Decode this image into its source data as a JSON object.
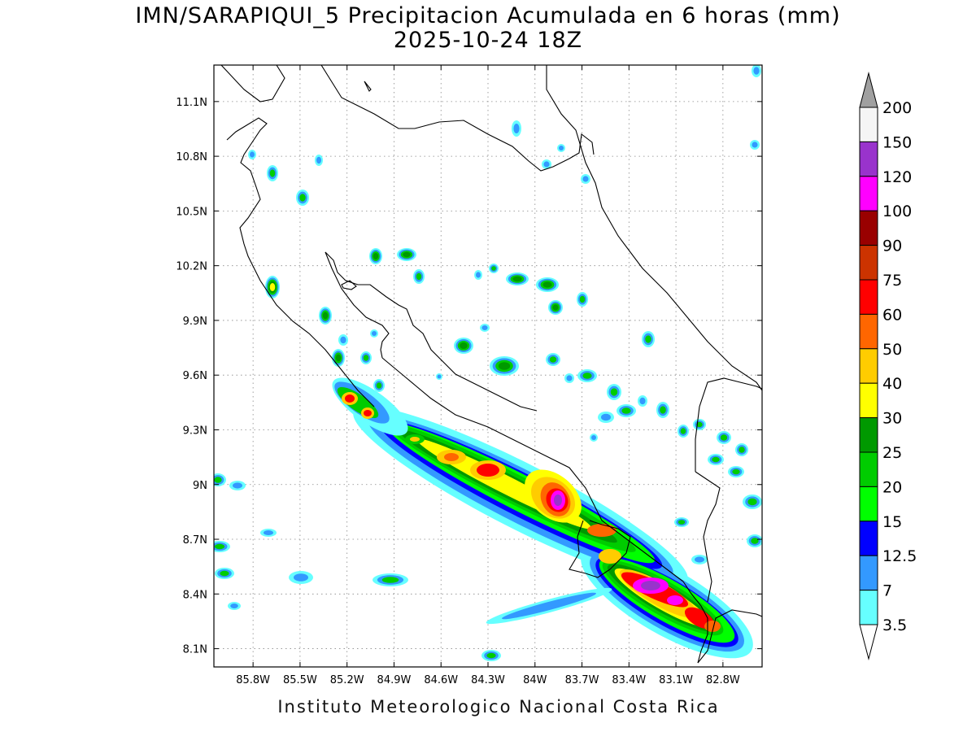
{
  "title": {
    "line1": "IMN/SARAPIQUI_5 Precipitacion Acumulada en 6 horas (mm)",
    "line2": "2025-10-24 18Z"
  },
  "footer": "Instituto Meteorologico Nacional Costa Rica",
  "map": {
    "lon_range": [
      -86.05,
      -82.55
    ],
    "lat_range": [
      8.0,
      11.3
    ],
    "lat_ticks": [
      {
        "value": 11.1,
        "label": "11.1N"
      },
      {
        "value": 10.8,
        "label": "10.8N"
      },
      {
        "value": 10.5,
        "label": "10.5N"
      },
      {
        "value": 10.2,
        "label": "10.2N"
      },
      {
        "value": 9.9,
        "label": "9.9N"
      },
      {
        "value": 9.6,
        "label": "9.6N"
      },
      {
        "value": 9.3,
        "label": "9.3N"
      },
      {
        "value": 9.0,
        "label": "9N"
      },
      {
        "value": 8.7,
        "label": "8.7N"
      },
      {
        "value": 8.4,
        "label": "8.4N"
      },
      {
        "value": 8.1,
        "label": "8.1N"
      }
    ],
    "lon_ticks": [
      {
        "value": -85.8,
        "label": "85.8W"
      },
      {
        "value": -85.5,
        "label": "85.5W"
      },
      {
        "value": -85.2,
        "label": "85.2W"
      },
      {
        "value": -84.9,
        "label": "84.9W"
      },
      {
        "value": -84.6,
        "label": "84.6W"
      },
      {
        "value": -84.3,
        "label": "84.3W"
      },
      {
        "value": -84.0,
        "label": "84W"
      },
      {
        "value": -83.7,
        "label": "83.7W"
      },
      {
        "value": -83.4,
        "label": "83.4W"
      },
      {
        "value": -83.1,
        "label": "83.1W"
      },
      {
        "value": -82.8,
        "label": "82.8W"
      }
    ],
    "grid": "dotted"
  },
  "colorbar": {
    "labels": [
      "200",
      "150",
      "120",
      "100",
      "90",
      "75",
      "60",
      "50",
      "40",
      "30",
      "25",
      "20",
      "15",
      "12.5",
      "7",
      "3.5"
    ],
    "colors": [
      "#a0a0a0",
      "#f5f5f5",
      "#9933cc",
      "#ff00ff",
      "#990000",
      "#cc3300",
      "#ff0000",
      "#ff6600",
      "#ffcc00",
      "#ffff00",
      "#009900",
      "#00cc00",
      "#00ff00",
      "#0000ff",
      "#3399ff",
      "#66ffff",
      "#ffffff"
    ]
  }
}
